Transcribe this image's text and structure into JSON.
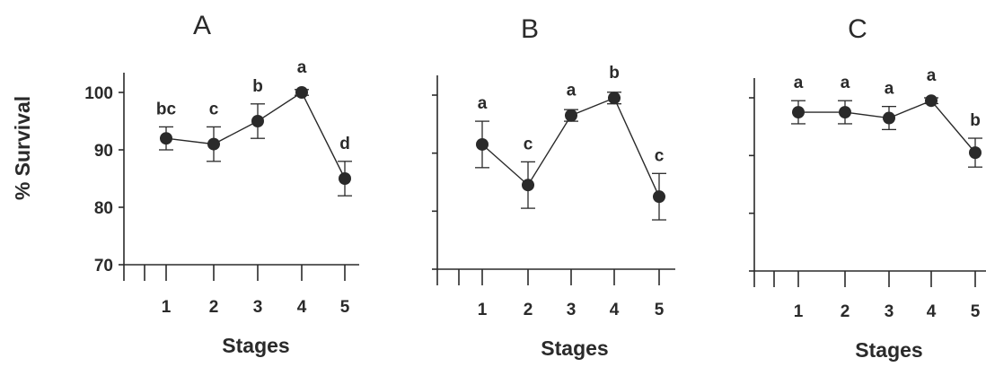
{
  "ylabel": "% Survival",
  "chart_data": [
    {
      "type": "line",
      "title": "A",
      "xlabel": "Stages",
      "ylabel": "% Survival",
      "categories": [
        "1",
        "2",
        "3",
        "4",
        "5"
      ],
      "ylim": [
        70,
        100
      ],
      "yticks": [
        "70",
        "80",
        "90",
        "100"
      ],
      "values": [
        92,
        91,
        95,
        100,
        85
      ],
      "errors": [
        2,
        3,
        3,
        0.5,
        3
      ],
      "labels": [
        "bc",
        "c",
        "b",
        "a",
        "d"
      ],
      "grid": false
    },
    {
      "type": "line",
      "title": "B",
      "xlabel": "Stages",
      "categories": [
        "1",
        "2",
        "3",
        "4",
        "5"
      ],
      "ylim": [
        70,
        100
      ],
      "yticks": [
        "",
        "",
        "",
        ""
      ],
      "values": [
        91.5,
        84.5,
        96.5,
        99.5,
        82.5
      ],
      "errors": [
        4,
        4,
        1,
        1,
        4
      ],
      "labels": [
        "a",
        "c",
        "a",
        "b",
        "c"
      ],
      "grid": false
    },
    {
      "type": "line",
      "title": "C",
      "xlabel": "Stages",
      "categories": [
        "1",
        "2",
        "3",
        "4",
        "5"
      ],
      "ylim": [
        70,
        100
      ],
      "yticks": [
        "",
        "",
        "",
        ""
      ],
      "values": [
        97.5,
        97.5,
        96.5,
        99.5,
        90.5
      ],
      "errors": [
        2,
        2,
        2,
        0.5,
        2.5
      ],
      "labels": [
        "a",
        "a",
        "a",
        "a",
        "b"
      ],
      "grid": false
    }
  ]
}
